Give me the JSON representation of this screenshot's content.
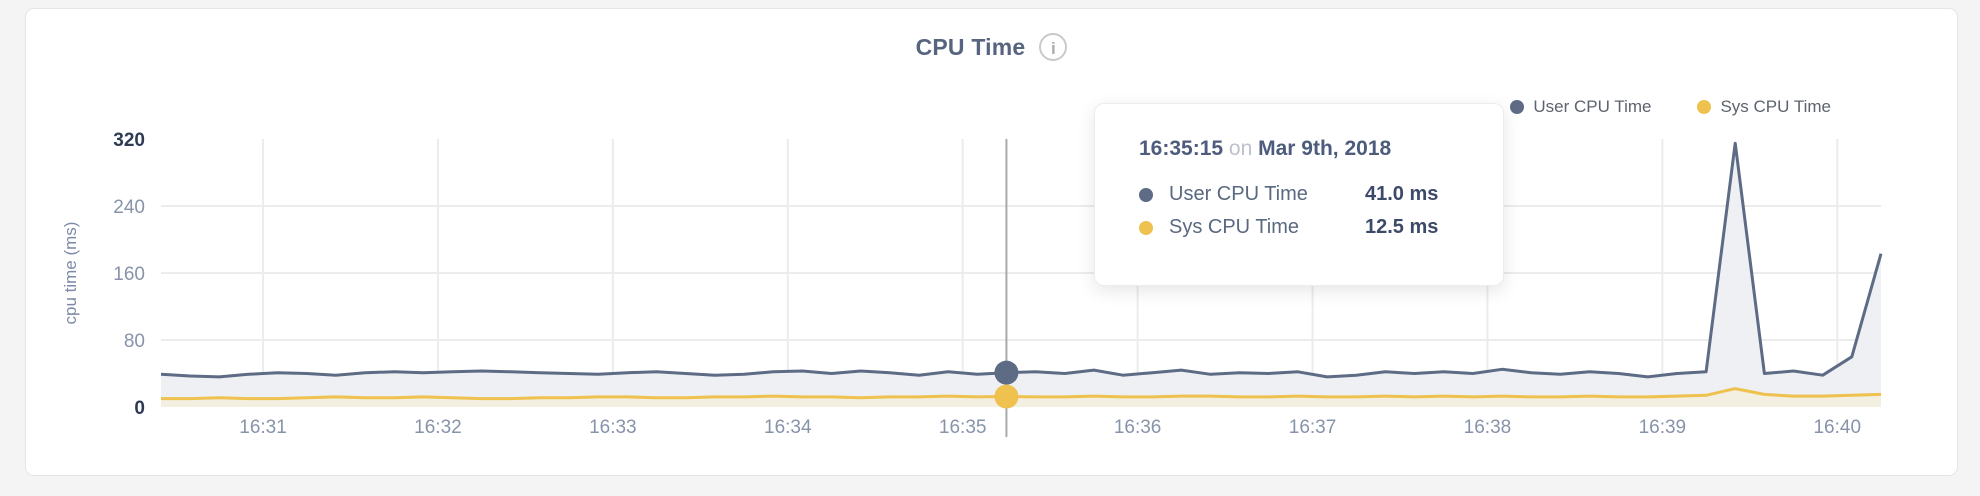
{
  "header": {
    "title": "CPU Time",
    "info_glyph": "i"
  },
  "legend": {
    "items": [
      {
        "label": "User CPU Time",
        "color": "#5d6b85"
      },
      {
        "label": "Sys CPU Time",
        "color": "#efc14e"
      }
    ]
  },
  "tooltip": {
    "time": "16:35:15",
    "connector": "on",
    "date": "Mar 9th, 2018",
    "rows": [
      {
        "label": "User CPU Time",
        "value": "41.0 ms",
        "color": "#5d6b85"
      },
      {
        "label": "Sys CPU Time",
        "value": "12.5 ms",
        "color": "#efc14e"
      }
    ]
  },
  "chart_data": {
    "type": "area",
    "title": "CPU Time",
    "xlabel": "",
    "ylabel": "cpu time (ms)",
    "ylim": [
      0,
      320
    ],
    "yticks": [
      0,
      80,
      160,
      240,
      320
    ],
    "x_tick_labels": [
      "16:31",
      "16:32",
      "16:33",
      "16:34",
      "16:35",
      "16:36",
      "16:37",
      "16:38",
      "16:39",
      "16:40"
    ],
    "x_start": "16:30:25",
    "x_end": "16:40:15",
    "interval_seconds": 10,
    "grid": true,
    "legend_position": "top-right",
    "colors": {
      "grid": "#ececec",
      "marker_line": "#a9a9a9",
      "tick_light": "#8793a9",
      "tick_dark": "#2f3b55"
    },
    "series": [
      {
        "name": "User CPU Time",
        "color": "#5d6b85",
        "fill": "#eef0f4",
        "values": [
          39,
          37,
          36,
          39,
          41,
          40,
          38,
          41,
          42,
          41,
          42,
          43,
          42,
          41,
          40,
          39,
          41,
          42,
          40,
          38,
          39,
          42,
          43,
          40,
          43,
          41,
          38,
          42,
          39,
          41,
          42,
          40,
          44,
          38,
          41,
          44,
          39,
          41,
          40,
          42,
          36,
          38,
          42,
          40,
          42,
          40,
          45,
          41,
          39,
          42,
          40,
          36,
          40,
          42,
          315,
          40,
          43,
          38,
          60,
          183
        ]
      },
      {
        "name": "Sys CPU Time",
        "color": "#efc14e",
        "fill": "#f3efe1",
        "values": [
          10,
          10,
          11,
          10,
          10,
          11,
          12,
          11,
          11,
          12,
          11,
          10,
          10,
          11,
          11,
          12,
          12,
          11,
          11,
          12,
          12,
          13,
          12,
          12,
          11,
          12,
          12,
          13,
          12,
          12.5,
          12,
          12,
          13,
          12,
          12,
          13,
          13,
          12,
          12,
          13,
          12,
          12,
          13,
          12,
          13,
          12,
          13,
          12,
          12,
          13,
          12,
          12,
          13,
          14,
          22,
          15,
          13,
          13,
          14,
          15
        ]
      }
    ],
    "marker": {
      "time": "16:35:15",
      "values": [
        41.0,
        12.5
      ]
    }
  }
}
